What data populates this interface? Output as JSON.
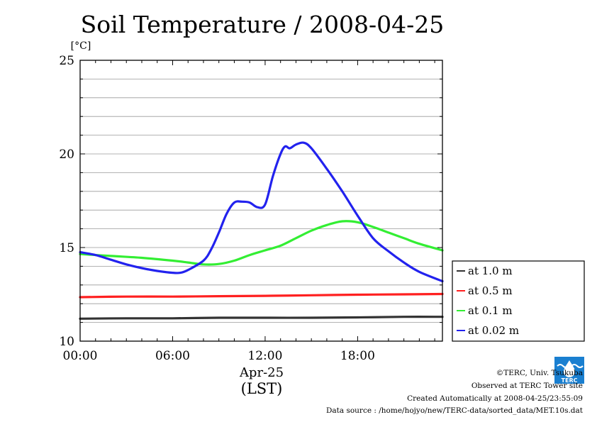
{
  "chart_data": {
    "type": "line",
    "title": "Soil Temperature / 2008-04-25",
    "ylabel": "[°C]",
    "xlabel": "Apr-25",
    "xlabel2": "(LST)",
    "ylim": [
      10,
      25
    ],
    "xlim": [
      0,
      23.5
    ],
    "y_ticks": [
      10,
      15,
      20,
      25
    ],
    "y_tick_labels": [
      "10",
      "15",
      "20",
      "25"
    ],
    "x_ticks": [
      0,
      6,
      12,
      18
    ],
    "x_tick_labels": [
      "00:00",
      "06:00",
      "12:00",
      "18:00"
    ],
    "grid": true,
    "legend_position": "right",
    "series": [
      {
        "name": "at 1.0 m",
        "color": "#333333",
        "x": [
          0,
          3,
          6,
          9,
          12,
          15,
          18,
          21,
          23.5
        ],
        "y": [
          11.2,
          11.22,
          11.22,
          11.25,
          11.25,
          11.25,
          11.27,
          11.3,
          11.3
        ]
      },
      {
        "name": "at 0.5 m",
        "color": "#ff2020",
        "x": [
          0,
          3,
          6,
          9,
          12,
          15,
          18,
          21,
          23.5
        ],
        "y": [
          12.35,
          12.38,
          12.38,
          12.4,
          12.42,
          12.45,
          12.48,
          12.5,
          12.52
        ]
      },
      {
        "name": "at 0.1 m",
        "color": "#33ee33",
        "x": [
          0,
          2,
          4,
          6,
          7,
          8,
          9,
          10,
          11,
          12,
          13,
          14,
          15,
          16,
          17,
          18,
          19,
          20,
          21,
          22,
          23.5
        ],
        "y": [
          14.65,
          14.55,
          14.45,
          14.3,
          14.2,
          14.1,
          14.12,
          14.3,
          14.6,
          14.85,
          15.1,
          15.5,
          15.9,
          16.2,
          16.4,
          16.35,
          16.1,
          15.8,
          15.5,
          15.2,
          14.85
        ]
      },
      {
        "name": "at 0.02 m",
        "color": "#2222ee",
        "x": [
          0,
          1,
          2,
          3,
          4,
          5,
          6,
          6.5,
          7,
          8,
          8.5,
          9,
          9.5,
          10,
          10.5,
          11,
          11.5,
          12,
          12.5,
          13,
          13.3,
          13.6,
          14,
          14.5,
          15,
          16,
          17,
          18,
          19,
          20,
          21,
          22,
          23.5
        ],
        "y": [
          14.75,
          14.6,
          14.35,
          14.1,
          13.9,
          13.75,
          13.65,
          13.65,
          13.8,
          14.3,
          14.9,
          15.8,
          16.8,
          17.4,
          17.45,
          17.4,
          17.15,
          17.3,
          18.8,
          20.0,
          20.4,
          20.3,
          20.5,
          20.6,
          20.3,
          19.2,
          18.0,
          16.7,
          15.5,
          14.8,
          14.2,
          13.7,
          13.2
        ]
      }
    ]
  },
  "credits": {
    "copyright": "©TERC, Univ. Tsukuba",
    "observed": "Observed at TERC Tower site",
    "created": "Created Automatically at 2008-04-25/23:55:09",
    "source": "Data source : /home/hojyo/new/TERC-data/sorted_data/MET.10s.dat"
  },
  "logo": {
    "icon": "terc-logo-icon",
    "text": "TERC",
    "color": "#1a7fd0"
  }
}
